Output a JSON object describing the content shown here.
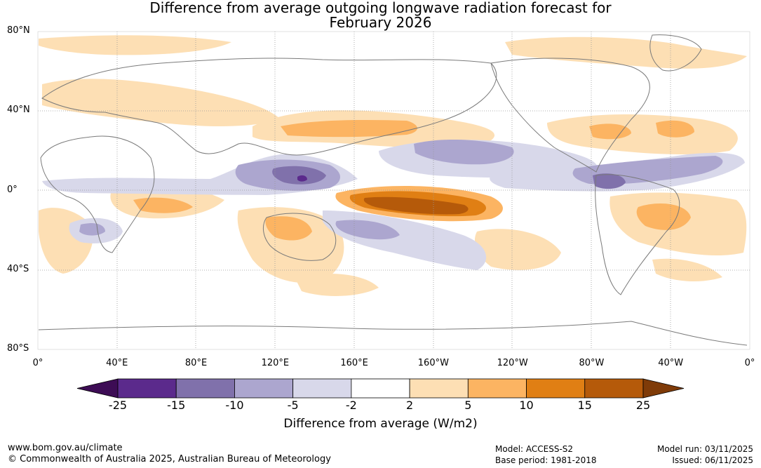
{
  "title_line1": "Difference from average outgoing longwave radiation forecast for",
  "title_line2": "February 2026",
  "map": {
    "lat_labels": [
      "80°N",
      "40°N",
      "0°",
      "40°S",
      "80°S"
    ],
    "lat_values": [
      80,
      40,
      0,
      -40,
      -80
    ],
    "lon_labels": [
      "0°",
      "40°E",
      "80°E",
      "120°E",
      "160°E",
      "160°W",
      "120°W",
      "80°W",
      "40°W",
      "0°"
    ],
    "lon_values": [
      0,
      40,
      80,
      120,
      160,
      200,
      240,
      280,
      320,
      360
    ]
  },
  "colorbar": {
    "ticks": [
      "-25",
      "-15",
      "-10",
      "-5",
      "-2",
      "2",
      "5",
      "10",
      "15",
      "25"
    ],
    "colors": [
      "#3d0c55",
      "#5b2a8c",
      "#8071ab",
      "#aca6cf",
      "#d8d8ea",
      "#ffffff",
      "#fddfb4",
      "#fcb462",
      "#e07f14",
      "#b55a0a",
      "#7f3b08"
    ],
    "title": "Difference from average (W/m2)"
  },
  "anomaly_regions": [
    {
      "name": "central-pacific-positive",
      "lon": 195,
      "lat": -7,
      "level": "15 to 25"
    },
    {
      "name": "maritime-continent-negative",
      "lon": 130,
      "lat": 7,
      "level": "-15 to -25"
    },
    {
      "name": "central-america-negative",
      "lon": 283,
      "lat": 2,
      "level": "-10 to -15"
    },
    {
      "name": "south-america-positive",
      "lon": 320,
      "lat": -15,
      "level": "5 to 10"
    }
  ],
  "footer": {
    "url": "www.bom.gov.au/climate",
    "copyright": "© Commonwealth of Australia 2025, Australian Bureau of Meteorology",
    "model": "Model: ACCESS-S2",
    "base_period": "Base period: 1981-2018",
    "model_run": "Model run: 03/11/2025",
    "issued": "Issued: 06/11/2025"
  }
}
